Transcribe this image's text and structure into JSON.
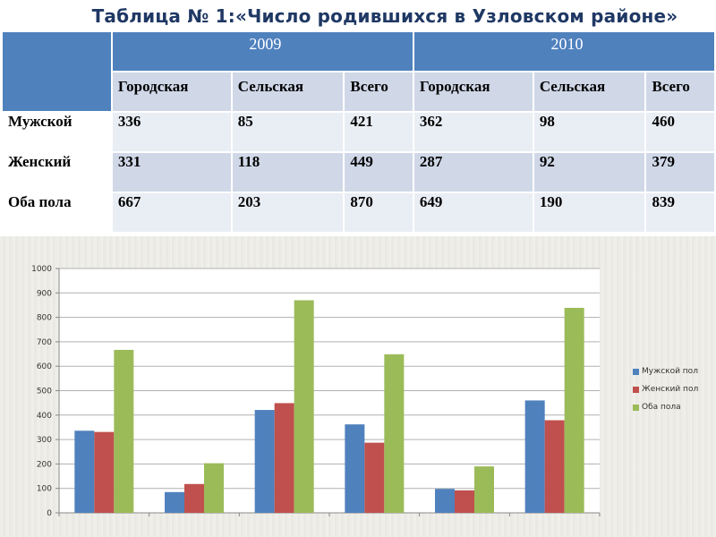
{
  "title": "Таблица № 1:«Число родившихся в Узловском районе»",
  "table": {
    "years": [
      "2009",
      "2010"
    ],
    "subheaders": [
      "Городская",
      "Сельская",
      "Всего",
      "Городская",
      "Сельская",
      "Всего"
    ],
    "rows": [
      {
        "label": "Мужской",
        "values": [
          "336",
          "85",
          "421",
          "362",
          "98",
          "460"
        ]
      },
      {
        "label": "Женский",
        "values": [
          "331",
          "118",
          "449",
          "287",
          "92",
          "379"
        ]
      },
      {
        "label": "Оба пола",
        "values": [
          "667",
          "203",
          "870",
          "649",
          "190",
          "839"
        ]
      }
    ]
  },
  "chart_data": {
    "type": "bar",
    "categories": [
      "",
      "",
      "",
      "",
      "",
      ""
    ],
    "series": [
      {
        "name": "Мужской пол",
        "values": [
          336,
          85,
          421,
          362,
          98,
          460
        ],
        "color": "#4f81bd"
      },
      {
        "name": "Женский пол",
        "values": [
          331,
          118,
          449,
          287,
          92,
          379
        ],
        "color": "#c0504d"
      },
      {
        "name": "Оба пола",
        "values": [
          667,
          203,
          870,
          649,
          190,
          839
        ],
        "color": "#9bbb59"
      }
    ],
    "ylim": [
      0,
      1000
    ],
    "yticks": [
      0,
      100,
      200,
      300,
      400,
      500,
      600,
      700,
      800,
      900,
      1000
    ],
    "grid": true,
    "legend": "right"
  }
}
